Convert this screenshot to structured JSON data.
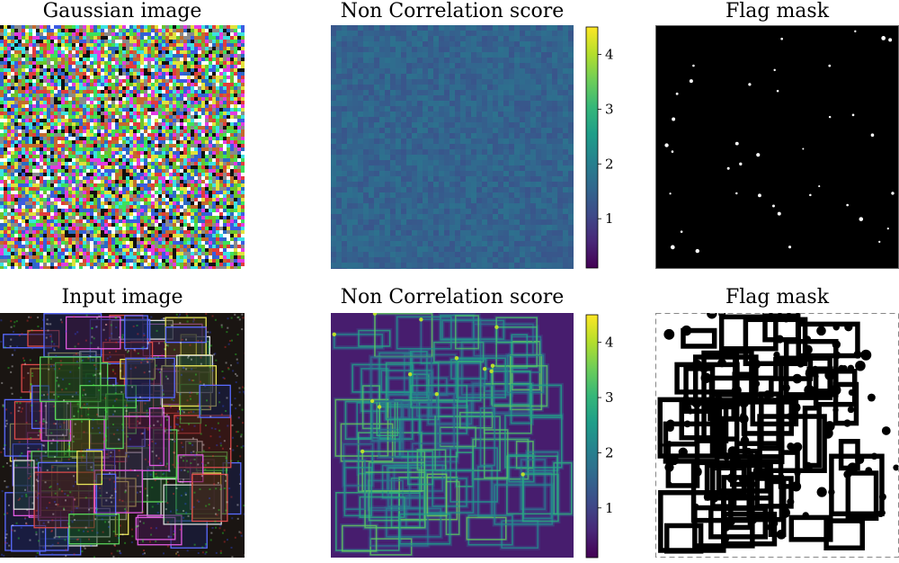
{
  "chart_data": [
    {
      "type": "heatmap",
      "title": "Gaussian image",
      "content": "RGB noise",
      "row": 1
    },
    {
      "type": "heatmap",
      "title": "Non Correlation score",
      "colormap": "viridis",
      "colorbar_ticks": [
        "1",
        "2",
        "3",
        "4"
      ],
      "colorbar_range": [
        0.1,
        4.5
      ],
      "field_level": 1.5,
      "row": 1
    },
    {
      "type": "heatmap",
      "title": "Flag mask",
      "content": "binary mask, mostly black with sparse white dots",
      "row": 1
    },
    {
      "type": "heatmap",
      "title": "Input image",
      "content": "RGB image of overlapping rectangles",
      "row": 2
    },
    {
      "type": "heatmap",
      "title": "Non Correlation score",
      "colormap": "viridis",
      "colorbar_ticks": [
        "1",
        "2",
        "3",
        "4"
      ],
      "colorbar_range": [
        0.1,
        4.5
      ],
      "row": 2
    },
    {
      "type": "heatmap",
      "title": "Flag mask",
      "content": "binary mask, white with black blobs along edges",
      "row": 2
    }
  ],
  "colors": {
    "viridis_low": "#440154",
    "viridis_mid": "#21918c",
    "viridis_high": "#fde725"
  }
}
